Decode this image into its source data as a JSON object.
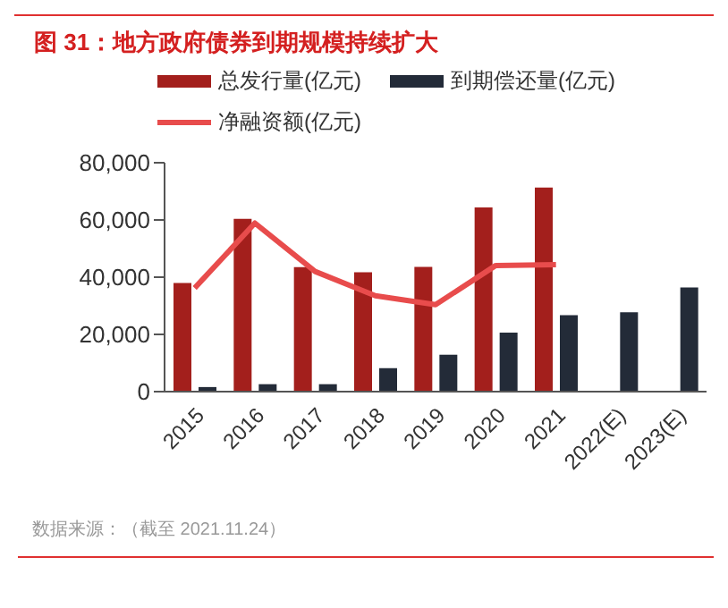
{
  "chart_data": {
    "type": "bar",
    "title": "图 31：地方政府债券到期规模持续扩大",
    "categories": [
      "2015",
      "2016",
      "2017",
      "2018",
      "2019",
      "2020",
      "2021",
      "2022(E)",
      "2023(E)"
    ],
    "series": [
      {
        "name": "总发行量(亿元)",
        "color": "#a31f1c",
        "values": [
          38000,
          60400,
          43500,
          41700,
          43600,
          64400,
          71300,
          null,
          null
        ]
      },
      {
        "name": "到期偿还量(亿元)",
        "color": "#232b38",
        "values": [
          1600,
          2600,
          2600,
          8200,
          12900,
          20600,
          26700,
          27700,
          36400
        ]
      },
      {
        "name": "净融资额(亿元)",
        "type": "line",
        "color": "#e84c4c",
        "values": [
          36200,
          58900,
          42000,
          33500,
          30400,
          44100,
          44400,
          null,
          null
        ]
      }
    ],
    "ylim": [
      0,
      80000
    ],
    "yticks": [
      {
        "value": 0,
        "label": "0"
      },
      {
        "value": 20000,
        "label": "20,000"
      },
      {
        "value": 40000,
        "label": "40,000"
      },
      {
        "value": 60000,
        "label": "60,000"
      },
      {
        "value": 80000,
        "label": "80,000"
      }
    ],
    "legend": "top",
    "grid": false,
    "marker": "none",
    "annotations": [
      "数据来源：（截至 2021.11.24）"
    ]
  }
}
